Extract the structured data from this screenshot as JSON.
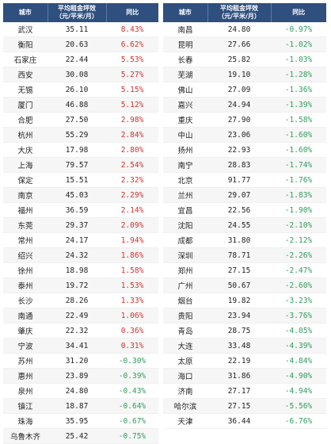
{
  "headers": {
    "city": "城市",
    "price_line1": "平均租金坪效",
    "price_line2": "（元/平米/月）",
    "change": "同比"
  },
  "left_rows": [
    {
      "city": "武汉",
      "price": "35.11",
      "change": "8.43%"
    },
    {
      "city": "衡阳",
      "price": "20.63",
      "change": "6.62%"
    },
    {
      "city": "石家庄",
      "price": "22.44",
      "change": "5.53%"
    },
    {
      "city": "西安",
      "price": "30.08",
      "change": "5.27%"
    },
    {
      "city": "无锡",
      "price": "26.10",
      "change": "5.15%"
    },
    {
      "city": "厦门",
      "price": "46.88",
      "change": "5.12%"
    },
    {
      "city": "合肥",
      "price": "27.50",
      "change": "2.98%"
    },
    {
      "city": "杭州",
      "price": "55.29",
      "change": "2.84%"
    },
    {
      "city": "大庆",
      "price": "17.98",
      "change": "2.80%"
    },
    {
      "city": "上海",
      "price": "79.57",
      "change": "2.54%"
    },
    {
      "city": "保定",
      "price": "15.51",
      "change": "2.32%"
    },
    {
      "city": "南京",
      "price": "45.03",
      "change": "2.29%"
    },
    {
      "city": "福州",
      "price": "36.59",
      "change": "2.14%"
    },
    {
      "city": "东莞",
      "price": "29.37",
      "change": "2.09%"
    },
    {
      "city": "常州",
      "price": "24.17",
      "change": "1.94%"
    },
    {
      "city": "绍兴",
      "price": "24.32",
      "change": "1.86%"
    },
    {
      "city": "徐州",
      "price": "18.98",
      "change": "1.58%"
    },
    {
      "city": "泰州",
      "price": "19.72",
      "change": "1.53%"
    },
    {
      "city": "长沙",
      "price": "28.26",
      "change": "1.33%"
    },
    {
      "city": "南通",
      "price": "22.49",
      "change": "1.06%"
    },
    {
      "city": "肇庆",
      "price": "22.32",
      "change": "0.36%"
    },
    {
      "city": "宁波",
      "price": "34.41",
      "change": "0.31%"
    },
    {
      "city": "苏州",
      "price": "31.20",
      "change": "-0.30%"
    },
    {
      "city": "惠州",
      "price": "23.89",
      "change": "-0.39%"
    },
    {
      "city": "泉州",
      "price": "24.80",
      "change": "-0.43%"
    },
    {
      "city": "镇江",
      "price": "18.87",
      "change": "-0.64%"
    },
    {
      "city": "珠海",
      "price": "35.95",
      "change": "-0.67%"
    },
    {
      "city": "乌鲁木齐",
      "price": "25.42",
      "change": "-0.75%"
    }
  ],
  "right_rows": [
    {
      "city": "南昌",
      "price": "24.80",
      "change": "-0.97%"
    },
    {
      "city": "昆明",
      "price": "27.66",
      "change": "-1.02%"
    },
    {
      "city": "长春",
      "price": "25.82",
      "change": "-1.03%"
    },
    {
      "city": "芜湖",
      "price": "19.10",
      "change": "-1.28%"
    },
    {
      "city": "佛山",
      "price": "27.09",
      "change": "-1.36%"
    },
    {
      "city": "嘉兴",
      "price": "24.94",
      "change": "-1.39%"
    },
    {
      "city": "重庆",
      "price": "27.90",
      "change": "-1.58%"
    },
    {
      "city": "中山",
      "price": "23.06",
      "change": "-1.60%"
    },
    {
      "city": "扬州",
      "price": "22.93",
      "change": "-1.60%"
    },
    {
      "city": "南宁",
      "price": "28.83",
      "change": "-1.74%"
    },
    {
      "city": "北京",
      "price": "91.77",
      "change": "-1.76%"
    },
    {
      "city": "兰州",
      "price": "29.07",
      "change": "-1.83%"
    },
    {
      "city": "宜昌",
      "price": "22.56",
      "change": "-1.90%"
    },
    {
      "city": "沈阳",
      "price": "24.55",
      "change": "-2.10%"
    },
    {
      "city": "成都",
      "price": "31.80",
      "change": "-2.12%"
    },
    {
      "city": "深圳",
      "price": "78.71",
      "change": "-2.26%"
    },
    {
      "city": "郑州",
      "price": "27.15",
      "change": "-2.47%"
    },
    {
      "city": "广州",
      "price": "50.67",
      "change": "-2.60%"
    },
    {
      "city": "烟台",
      "price": "19.82",
      "change": "-3.23%"
    },
    {
      "city": "贵阳",
      "price": "23.94",
      "change": "-3.76%"
    },
    {
      "city": "青岛",
      "price": "28.75",
      "change": "-4.05%"
    },
    {
      "city": "大连",
      "price": "33.48",
      "change": "-4.39%"
    },
    {
      "city": "太原",
      "price": "22.19",
      "change": "-4.84%"
    },
    {
      "city": "海口",
      "price": "31.86",
      "change": "-4.90%"
    },
    {
      "city": "济南",
      "price": "27.17",
      "change": "-4.94%"
    },
    {
      "city": "哈尔滨",
      "price": "27.15",
      "change": "-5.56%"
    },
    {
      "city": "天津",
      "price": "36.44",
      "change": "-6.76%"
    }
  ],
  "colors": {
    "header_bg": "#2f4f7f",
    "positive": "#d32f2f",
    "negative": "#2e9e5b"
  }
}
